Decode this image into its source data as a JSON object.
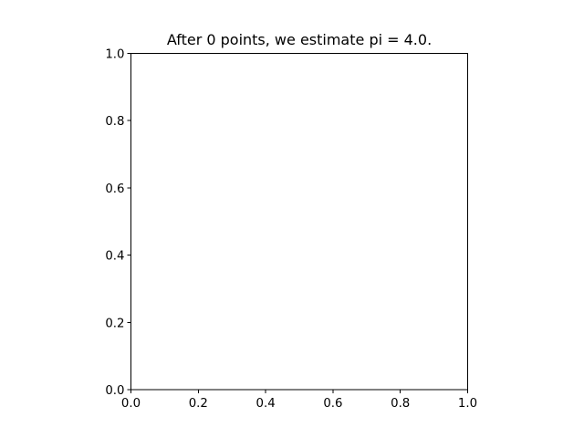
{
  "chart_data": {
    "type": "scatter",
    "title": "After 0 points, we estimate pi = 4.0.",
    "xlabel": "",
    "ylabel": "",
    "xlim": [
      0.0,
      1.0
    ],
    "ylim": [
      0.0,
      1.0
    ],
    "x_ticks": [
      "0.0",
      "0.2",
      "0.4",
      "0.6",
      "0.8",
      "1.0"
    ],
    "y_ticks": [
      "0.0",
      "0.2",
      "0.4",
      "0.6",
      "0.8",
      "1.0"
    ],
    "grid": false,
    "legend": "none",
    "series": [
      {
        "points": []
      }
    ]
  }
}
